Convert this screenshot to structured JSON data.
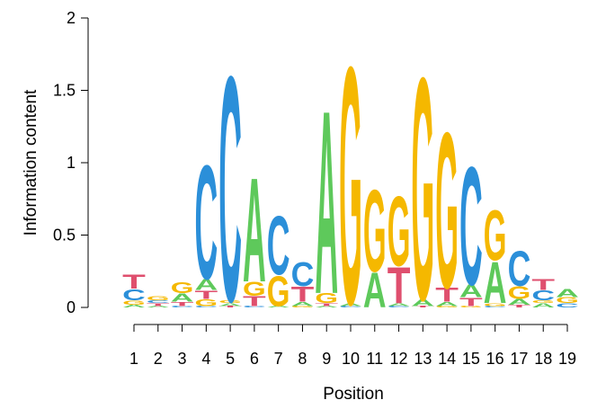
{
  "chart_data": {
    "type": "sequence-logo",
    "xlabel": "Position",
    "ylabel": "Information content",
    "ylim": [
      0,
      2
    ],
    "yticks": [
      "0",
      "0.5",
      "1",
      "1.5",
      "2"
    ],
    "xticks": [
      "1",
      "2",
      "3",
      "4",
      "5",
      "6",
      "7",
      "8",
      "9",
      "10",
      "11",
      "12",
      "13",
      "14",
      "15",
      "16",
      "17",
      "18",
      "19"
    ],
    "colors": {
      "A": "#5ec95b",
      "C": "#2b8fd9",
      "G": "#f5b800",
      "T": "#df4f6e"
    },
    "positions": [
      {
        "pos": "1",
        "stack": [
          [
            "A",
            0.02
          ],
          [
            "G",
            0.03
          ],
          [
            "C",
            0.08
          ],
          [
            "T",
            0.1
          ]
        ]
      },
      {
        "pos": "2",
        "stack": [
          [
            "A",
            0.01
          ],
          [
            "T",
            0.02
          ],
          [
            "C",
            0.02
          ],
          [
            "G",
            0.03
          ]
        ]
      },
      {
        "pos": "3",
        "stack": [
          [
            "C",
            0.01
          ],
          [
            "T",
            0.03
          ],
          [
            "A",
            0.06
          ],
          [
            "G",
            0.08
          ]
        ]
      },
      {
        "pos": "4",
        "stack": [
          [
            "C",
            0.01
          ],
          [
            "G",
            0.05
          ],
          [
            "T",
            0.06
          ],
          [
            "A",
            0.08
          ],
          [
            "C",
            0.82
          ]
        ]
      },
      {
        "pos": "5",
        "stack": [
          [
            "T",
            0.01
          ],
          [
            "A",
            0.02
          ],
          [
            "G",
            0.02
          ],
          [
            "C",
            1.62
          ]
        ]
      },
      {
        "pos": "6",
        "stack": [
          [
            "C",
            0.01
          ],
          [
            "T",
            0.07
          ],
          [
            "G",
            0.1
          ],
          [
            "A",
            0.75
          ]
        ]
      },
      {
        "pos": "7",
        "stack": [
          [
            "A",
            0.01
          ],
          [
            "G",
            0.22
          ],
          [
            "C",
            0.42
          ]
        ]
      },
      {
        "pos": "8",
        "stack": [
          [
            "G",
            0.01
          ],
          [
            "A",
            0.03
          ],
          [
            "T",
            0.11
          ],
          [
            "C",
            0.17
          ]
        ]
      },
      {
        "pos": "9",
        "stack": [
          [
            "A",
            0.01
          ],
          [
            "T",
            0.02
          ],
          [
            "G",
            0.07
          ],
          [
            "A",
            1.32
          ]
        ]
      },
      {
        "pos": "10",
        "stack": [
          [
            "C",
            0.01
          ],
          [
            "A",
            0.02
          ],
          [
            "G",
            1.71
          ]
        ]
      },
      {
        "pos": "11",
        "stack": [
          [
            "A",
            0.25
          ],
          [
            "G",
            0.59
          ]
        ]
      },
      {
        "pos": "12",
        "stack": [
          [
            "C",
            0.01
          ],
          [
            "A",
            0.02
          ],
          [
            "T",
            0.26
          ],
          [
            "G",
            0.5
          ]
        ]
      },
      {
        "pos": "13",
        "stack": [
          [
            "T",
            0.01
          ],
          [
            "A",
            0.05
          ],
          [
            "G",
            1.6
          ]
        ]
      },
      {
        "pos": "14",
        "stack": [
          [
            "G",
            0.01
          ],
          [
            "A",
            0.03
          ],
          [
            "T",
            0.1
          ],
          [
            "G",
            1.12
          ]
        ]
      },
      {
        "pos": "15",
        "stack": [
          [
            "G",
            0.01
          ],
          [
            "T",
            0.06
          ],
          [
            "A",
            0.09
          ],
          [
            "C",
            0.85
          ]
        ]
      },
      {
        "pos": "16",
        "stack": [
          [
            "C",
            0.01
          ],
          [
            "G",
            0.02
          ],
          [
            "A",
            0.3
          ],
          [
            "G",
            0.36
          ]
        ]
      },
      {
        "pos": "17",
        "stack": [
          [
            "T",
            0.02
          ],
          [
            "A",
            0.04
          ],
          [
            "G",
            0.09
          ],
          [
            "C",
            0.25
          ]
        ]
      },
      {
        "pos": "18",
        "stack": [
          [
            "A",
            0.03
          ],
          [
            "G",
            0.02
          ],
          [
            "C",
            0.07
          ],
          [
            "T",
            0.08
          ]
        ]
      },
      {
        "pos": "19",
        "stack": [
          [
            "C",
            0.03
          ],
          [
            "G",
            0.04
          ],
          [
            "A",
            0.06
          ]
        ]
      }
    ]
  }
}
